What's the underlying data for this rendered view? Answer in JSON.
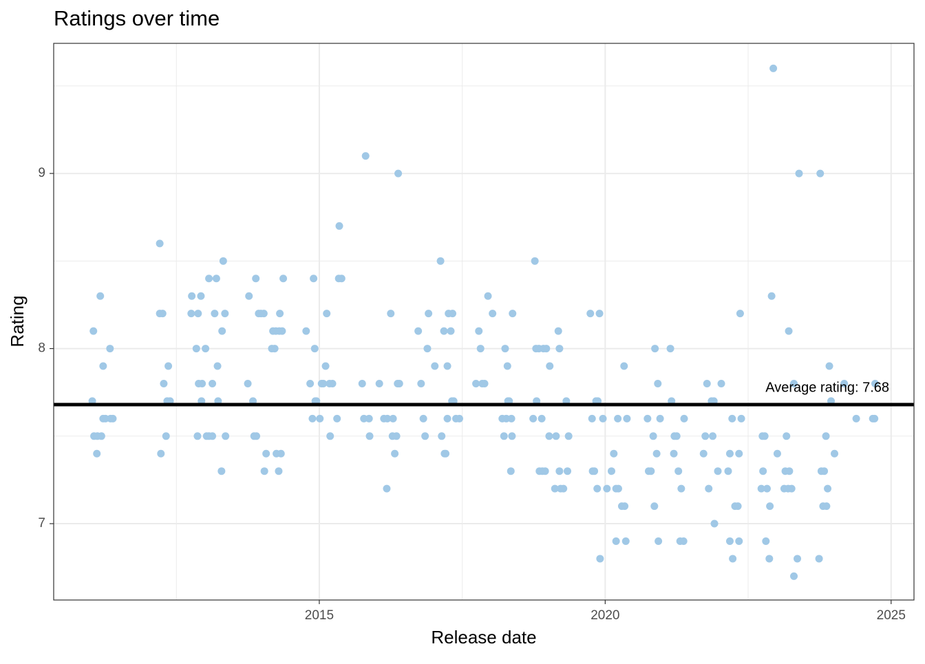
{
  "chart_data": {
    "type": "scatter",
    "title": "Ratings over time",
    "x_label": "Release date",
    "y_label": "Rating",
    "xlim": [
      2010.355,
      2025.4
    ],
    "ylim": [
      6.564,
      9.743
    ],
    "xticks": [
      2015,
      2020,
      2025
    ],
    "yticks": [
      7,
      8,
      9
    ],
    "x_minor_grid": [
      2012.5,
      2017.5,
      2022.5
    ],
    "y_minor_grid": [
      7.5,
      8.5,
      9.5
    ],
    "grid": true,
    "color": "#a0c8e6",
    "reference_line": {
      "value": 7.68,
      "label": "Average rating: 7.68",
      "color": "#000000"
    },
    "x": [
      2011.03,
      2011.05,
      2011.06,
      2011.11,
      2011.12,
      2011.17,
      2011.19,
      2011.22,
      2011.22,
      2011.26,
      2011.34,
      2011.35,
      2011.39,
      2012.21,
      2012.21,
      2012.23,
      2012.26,
      2012.28,
      2012.32,
      2012.34,
      2012.36,
      2012.39,
      2012.76,
      2012.77,
      2012.85,
      2012.87,
      2012.88,
      2012.89,
      2012.93,
      2012.94,
      2012.95,
      2013.01,
      2013.03,
      2013.07,
      2013.07,
      2013.13,
      2013.13,
      2013.17,
      2013.2,
      2013.22,
      2013.23,
      2013.29,
      2013.3,
      2013.32,
      2013.35,
      2013.36,
      2013.75,
      2013.77,
      2013.84,
      2013.86,
      2013.89,
      2013.9,
      2013.94,
      2013.98,
      2014.03,
      2014.04,
      2014.07,
      2014.17,
      2014.19,
      2014.22,
      2014.24,
      2014.25,
      2014.29,
      2014.3,
      2014.31,
      2014.33,
      2014.35,
      2014.37,
      2014.77,
      2014.84,
      2014.88,
      2014.9,
      2014.92,
      2014.93,
      2014.95,
      2015.01,
      2015.04,
      2015.07,
      2015.11,
      2015.13,
      2015.18,
      2015.19,
      2015.23,
      2015.31,
      2015.34,
      2015.35,
      2015.39,
      2015.75,
      2015.78,
      2015.81,
      2015.87,
      2015.88,
      2016.05,
      2016.13,
      2016.18,
      2016.19,
      2016.25,
      2016.28,
      2016.29,
      2016.32,
      2016.35,
      2016.37,
      2016.38,
      2016.4,
      2016.73,
      2016.78,
      2016.82,
      2016.85,
      2016.89,
      2016.91,
      2017.02,
      2017.12,
      2017.14,
      2017.18,
      2017.19,
      2017.21,
      2017.24,
      2017.24,
      2017.26,
      2017.3,
      2017.32,
      2017.35,
      2017.33,
      2017.39,
      2017.45,
      2017.74,
      2017.79,
      2017.82,
      2017.85,
      2017.89,
      2017.95,
      2018.03,
      2018.2,
      2018.23,
      2018.25,
      2018.27,
      2018.29,
      2018.3,
      2018.32,
      2018.35,
      2018.36,
      2018.37,
      2018.38,
      2018.74,
      2018.77,
      2018.79,
      2018.8,
      2018.84,
      2018.85,
      2018.89,
      2018.9,
      2018.92,
      2018.95,
      2018.97,
      2019.02,
      2019.03,
      2019.12,
      2019.14,
      2019.18,
      2019.2,
      2019.2,
      2019.22,
      2019.27,
      2019.32,
      2019.34,
      2019.36,
      2019.74,
      2019.78,
      2019.77,
      2019.81,
      2019.84,
      2019.86,
      2019.87,
      2019.9,
      2019.91,
      2019.96,
      2020.03,
      2020.11,
      2020.15,
      2020.19,
      2020.19,
      2020.22,
      2020.23,
      2020.29,
      2020.33,
      2020.34,
      2020.36,
      2020.38,
      2020.74,
      2020.76,
      2020.8,
      2020.84,
      2020.86,
      2020.87,
      2020.9,
      2020.92,
      2020.93,
      2020.96,
      2021.14,
      2021.16,
      2021.2,
      2021.21,
      2021.25,
      2021.28,
      2021.31,
      2021.33,
      2021.37,
      2021.38,
      2021.72,
      2021.75,
      2021.78,
      2021.81,
      2021.86,
      2021.88,
      2021.9,
      2021.91,
      2021.97,
      2022.03,
      2022.15,
      2022.18,
      2022.18,
      2022.22,
      2022.23,
      2022.27,
      2022.32,
      2022.34,
      2022.34,
      2022.36,
      2022.38,
      2022.73,
      2022.75,
      2022.76,
      2022.79,
      2022.81,
      2022.83,
      2022.87,
      2022.88,
      2022.91,
      2022.94,
      2023.01,
      2023.13,
      2023.15,
      2023.17,
      2023.2,
      2023.21,
      2023.22,
      2023.26,
      2023.3,
      2023.3,
      2023.36,
      2023.39,
      2023.74,
      2023.76,
      2023.78,
      2023.81,
      2023.83,
      2023.86,
      2023.87,
      2023.89,
      2023.92,
      2023.95,
      2024.01,
      2024.18,
      2024.39,
      2024.68,
      2024.71,
      2024.72
    ],
    "y": [
      7.7,
      8.1,
      7.5,
      7.4,
      7.5,
      8.3,
      7.5,
      7.9,
      7.6,
      7.6,
      8.0,
      7.6,
      7.6,
      8.6,
      8.2,
      7.4,
      8.2,
      7.8,
      7.5,
      7.7,
      7.9,
      7.7,
      8.2,
      8.3,
      8.0,
      7.5,
      8.2,
      7.8,
      8.3,
      7.7,
      7.8,
      8.0,
      7.5,
      8.4,
      7.5,
      7.8,
      7.5,
      8.2,
      8.4,
      7.9,
      7.7,
      7.3,
      8.1,
      8.5,
      8.2,
      7.5,
      7.8,
      8.3,
      7.7,
      7.5,
      8.4,
      7.5,
      8.2,
      8.2,
      8.2,
      7.3,
      7.4,
      8.0,
      8.1,
      8.0,
      8.1,
      7.4,
      7.3,
      8.1,
      8.2,
      7.4,
      8.1,
      8.4,
      8.1,
      7.8,
      7.6,
      8.4,
      8.0,
      7.7,
      7.7,
      7.6,
      7.8,
      7.8,
      7.9,
      8.2,
      7.8,
      7.5,
      7.8,
      7.6,
      8.4,
      8.7,
      8.4,
      7.8,
      7.6,
      9.1,
      7.6,
      7.5,
      7.8,
      7.6,
      7.2,
      7.6,
      8.2,
      7.5,
      7.6,
      7.4,
      7.5,
      7.8,
      9.0,
      7.8,
      8.1,
      7.8,
      7.6,
      7.5,
      8.0,
      8.2,
      7.9,
      8.5,
      7.5,
      8.1,
      7.4,
      7.4,
      7.9,
      7.6,
      8.2,
      8.1,
      7.7,
      7.7,
      8.2,
      7.6,
      7.6,
      7.8,
      8.1,
      8.0,
      7.8,
      7.8,
      8.3,
      8.2,
      7.6,
      7.5,
      8.0,
      7.6,
      7.9,
      7.7,
      7.7,
      7.3,
      7.6,
      7.5,
      8.2,
      7.6,
      8.5,
      8.0,
      7.7,
      8.0,
      7.3,
      7.6,
      7.3,
      8.0,
      7.3,
      8.0,
      7.5,
      7.9,
      7.2,
      7.5,
      8.1,
      8.0,
      7.3,
      7.2,
      7.2,
      7.7,
      7.3,
      7.5,
      8.2,
      7.3,
      7.6,
      7.3,
      7.7,
      7.2,
      7.7,
      8.2,
      6.8,
      7.6,
      7.2,
      7.3,
      7.4,
      6.9,
      7.2,
      7.6,
      7.2,
      7.1,
      7.9,
      7.1,
      6.9,
      7.6,
      7.6,
      7.3,
      7.3,
      7.5,
      7.1,
      8.0,
      7.4,
      7.8,
      6.9,
      7.6,
      8.0,
      7.7,
      7.4,
      7.5,
      7.5,
      7.3,
      6.9,
      7.2,
      6.9,
      7.6,
      7.4,
      7.5,
      7.8,
      7.2,
      7.7,
      7.5,
      7.7,
      7.0,
      7.3,
      7.8,
      7.3,
      6.9,
      7.4,
      7.6,
      6.8,
      7.1,
      7.1,
      7.4,
      6.9,
      8.2,
      7.6,
      7.2,
      7.5,
      7.3,
      7.5,
      6.9,
      7.2,
      6.8,
      7.1,
      8.3,
      9.6,
      7.4,
      7.2,
      7.3,
      7.5,
      7.2,
      8.1,
      7.3,
      7.2,
      6.7,
      7.8,
      6.8,
      9.0,
      6.8,
      9.0,
      7.3,
      7.1,
      7.3,
      7.5,
      7.1,
      7.2,
      7.9,
      7.7,
      7.4,
      7.8,
      7.6,
      7.6,
      7.6,
      7.8
    ]
  }
}
